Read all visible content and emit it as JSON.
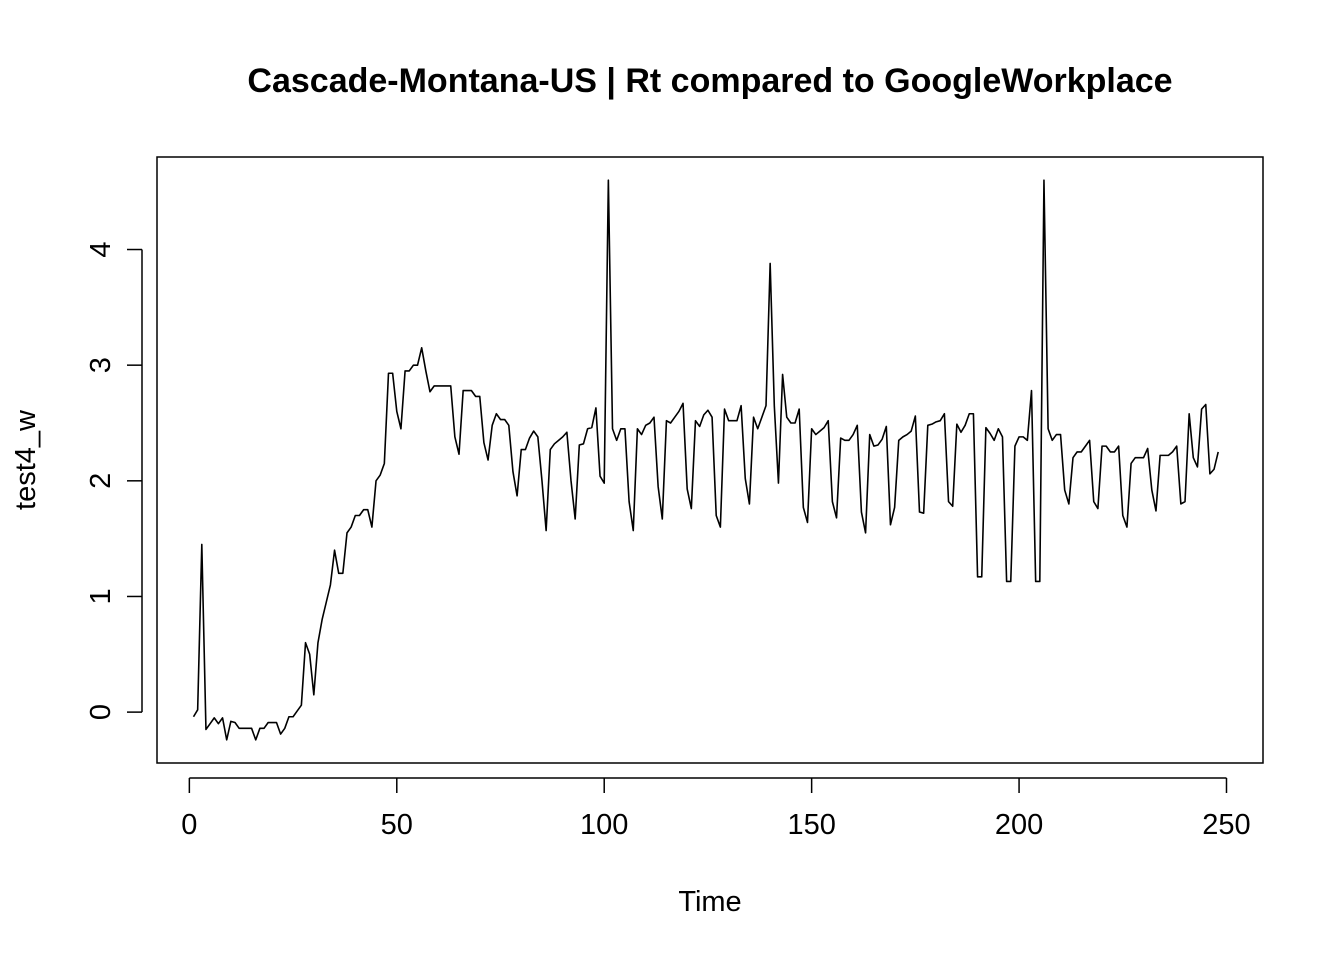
{
  "chart_data": {
    "type": "line",
    "title": "Cascade-Montana-US | Rt compared to GoogleWorkplace",
    "xlabel": "Time",
    "ylabel": "test4_w",
    "xlim": [
      -7.8,
      258.8
    ],
    "ylim": [
      -0.44,
      4.8
    ],
    "xticks": [
      0,
      50,
      100,
      150,
      200,
      250
    ],
    "yticks": [
      0,
      1,
      2,
      3,
      4
    ],
    "grid": false,
    "legend": "none",
    "line_color": "#000000",
    "series": [
      {
        "x": [
          1,
          2,
          3,
          4,
          5,
          6,
          7,
          8,
          9,
          10,
          11,
          12,
          13,
          14,
          15,
          16,
          17,
          18,
          19,
          20,
          21,
          22,
          23,
          24,
          25,
          26,
          27,
          28,
          29,
          30,
          31,
          32,
          33,
          34,
          35,
          36,
          37,
          38,
          39,
          40,
          41,
          42,
          43,
          44,
          45,
          46,
          47,
          48,
          49,
          50,
          51,
          52,
          53,
          54,
          55,
          56,
          57,
          58,
          59,
          60,
          61,
          62,
          63,
          64,
          65,
          66,
          67,
          68,
          69,
          70,
          71,
          72,
          73,
          74,
          75,
          76,
          77,
          78,
          79,
          80,
          81,
          82,
          83,
          84,
          85,
          86,
          87,
          88,
          89,
          90,
          91,
          92,
          93,
          94,
          95,
          96,
          97,
          98,
          99,
          100,
          101,
          102,
          103,
          104,
          105,
          106,
          107,
          108,
          109,
          110,
          111,
          112,
          113,
          114,
          115,
          116,
          117,
          118,
          119,
          120,
          121,
          122,
          123,
          124,
          125,
          126,
          127,
          128,
          129,
          130,
          131,
          132,
          133,
          134,
          135,
          136,
          137,
          138,
          139,
          140,
          141,
          142,
          143,
          144,
          145,
          146,
          147,
          148,
          149,
          150,
          151,
          152,
          153,
          154,
          155,
          156,
          157,
          158,
          159,
          160,
          161,
          162,
          163,
          164,
          165,
          166,
          167,
          168,
          169,
          170,
          171,
          172,
          173,
          174,
          175,
          176,
          177,
          178,
          179,
          180,
          181,
          182,
          183,
          184,
          185,
          186,
          187,
          188,
          189,
          190,
          191,
          192,
          193,
          194,
          195,
          196,
          197,
          198,
          199,
          200,
          201,
          202,
          203,
          204,
          205,
          206,
          207,
          208,
          209,
          210,
          211,
          212,
          213,
          214,
          215,
          216,
          217,
          218,
          219,
          220,
          221,
          222,
          223,
          224,
          225,
          226,
          227,
          228,
          229,
          230,
          231,
          232,
          233,
          234,
          235,
          236,
          237,
          238,
          239,
          240,
          241,
          242,
          243,
          244,
          245,
          246,
          247,
          248
        ],
        "values": [
          -0.04,
          0.02,
          1.45,
          -0.15,
          -0.1,
          -0.05,
          -0.1,
          -0.05,
          -0.24,
          -0.08,
          -0.09,
          -0.14,
          -0.14,
          -0.14,
          -0.14,
          -0.24,
          -0.14,
          -0.14,
          -0.09,
          -0.09,
          -0.09,
          -0.19,
          -0.14,
          -0.04,
          -0.04,
          0.01,
          0.06,
          0.6,
          0.5,
          0.15,
          0.6,
          0.8,
          0.95,
          1.1,
          1.4,
          1.2,
          1.2,
          1.55,
          1.6,
          1.7,
          1.7,
          1.75,
          1.75,
          1.6,
          2.0,
          2.05,
          2.15,
          2.93,
          2.93,
          2.6,
          2.45,
          2.95,
          2.95,
          3.0,
          3.0,
          3.15,
          2.95,
          2.77,
          2.82,
          2.82,
          2.82,
          2.82,
          2.82,
          2.38,
          2.23,
          2.78,
          2.78,
          2.78,
          2.73,
          2.73,
          2.33,
          2.18,
          2.48,
          2.58,
          2.53,
          2.53,
          2.48,
          2.08,
          1.87,
          2.27,
          2.27,
          2.37,
          2.43,
          2.38,
          2.0,
          1.57,
          2.27,
          2.32,
          2.35,
          2.38,
          2.42,
          2.0,
          1.67,
          2.31,
          2.32,
          2.45,
          2.46,
          2.63,
          2.04,
          1.98,
          4.6,
          2.45,
          2.35,
          2.45,
          2.45,
          1.82,
          1.57,
          2.45,
          2.4,
          2.48,
          2.5,
          2.55,
          1.95,
          1.67,
          2.52,
          2.5,
          2.55,
          2.6,
          2.67,
          1.93,
          1.76,
          2.52,
          2.47,
          2.57,
          2.61,
          2.55,
          1.7,
          1.6,
          2.62,
          2.52,
          2.52,
          2.52,
          2.65,
          2.02,
          1.8,
          2.55,
          2.45,
          2.55,
          2.65,
          3.88,
          2.65,
          1.98,
          2.92,
          2.55,
          2.5,
          2.5,
          2.62,
          1.77,
          1.64,
          2.45,
          2.4,
          2.43,
          2.46,
          2.52,
          1.82,
          1.68,
          2.37,
          2.35,
          2.35,
          2.4,
          2.48,
          1.73,
          1.55,
          2.4,
          2.3,
          2.31,
          2.36,
          2.47,
          1.62,
          1.77,
          2.35,
          2.38,
          2.4,
          2.43,
          2.56,
          1.73,
          1.72,
          2.48,
          2.49,
          2.51,
          2.52,
          2.58,
          1.82,
          1.78,
          2.49,
          2.42,
          2.48,
          2.58,
          2.58,
          1.17,
          1.17,
          2.46,
          2.41,
          2.35,
          2.45,
          2.38,
          1.13,
          1.13,
          2.3,
          2.38,
          2.38,
          2.35,
          2.78,
          1.13,
          1.13,
          4.6,
          2.45,
          2.35,
          2.4,
          2.4,
          1.92,
          1.8,
          2.2,
          2.25,
          2.25,
          2.3,
          2.35,
          1.82,
          1.76,
          2.3,
          2.3,
          2.25,
          2.25,
          2.3,
          1.7,
          1.6,
          2.15,
          2.2,
          2.2,
          2.2,
          2.28,
          1.92,
          1.74,
          2.22,
          2.22,
          2.22,
          2.25,
          2.3,
          1.8,
          1.82,
          2.58,
          2.2,
          2.12,
          2.62,
          2.66,
          2.06,
          2.1,
          2.25
        ]
      }
    ]
  }
}
